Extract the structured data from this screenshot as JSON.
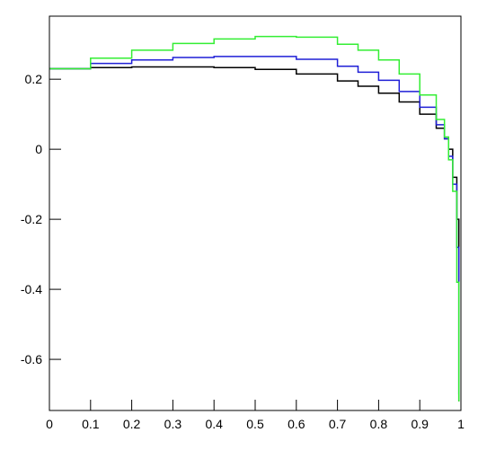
{
  "chart_data": {
    "type": "line",
    "x": [
      0,
      0.1,
      0.2,
      0.3,
      0.4,
      0.5,
      0.6,
      0.7,
      0.75,
      0.8,
      0.85,
      0.9,
      0.94,
      0.96,
      0.97,
      0.98,
      0.99,
      0.995
    ],
    "series": [
      {
        "color": "#000000",
        "values": [
          0.23,
          0.233,
          0.235,
          0.235,
          0.233,
          0.228,
          0.215,
          0.195,
          0.18,
          0.16,
          0.135,
          0.1,
          0.06,
          0.03,
          0.0,
          -0.08,
          -0.2,
          -0.72
        ]
      },
      {
        "color": "#1f1fd6",
        "values": [
          0.23,
          0.245,
          0.255,
          0.262,
          0.265,
          0.265,
          0.257,
          0.237,
          0.22,
          0.197,
          0.165,
          0.12,
          0.07,
          0.03,
          -0.02,
          -0.1,
          -0.28,
          -0.7
        ]
      },
      {
        "color": "#33ee33",
        "values": [
          0.23,
          0.26,
          0.283,
          0.302,
          0.315,
          0.322,
          0.32,
          0.3,
          0.283,
          0.255,
          0.215,
          0.155,
          0.085,
          0.035,
          -0.03,
          -0.12,
          -0.38,
          -0.72
        ]
      }
    ],
    "xlim": [
      0,
      1
    ],
    "xticks": [
      0,
      0.1,
      0.2,
      0.3,
      0.4,
      0.5,
      0.6,
      0.7,
      0.8,
      0.9,
      1
    ],
    "ylim": [
      -0.746,
      0.38
    ],
    "yticks": [
      -0.6,
      -0.4,
      -0.2,
      0,
      0.2
    ],
    "grid": false
  }
}
